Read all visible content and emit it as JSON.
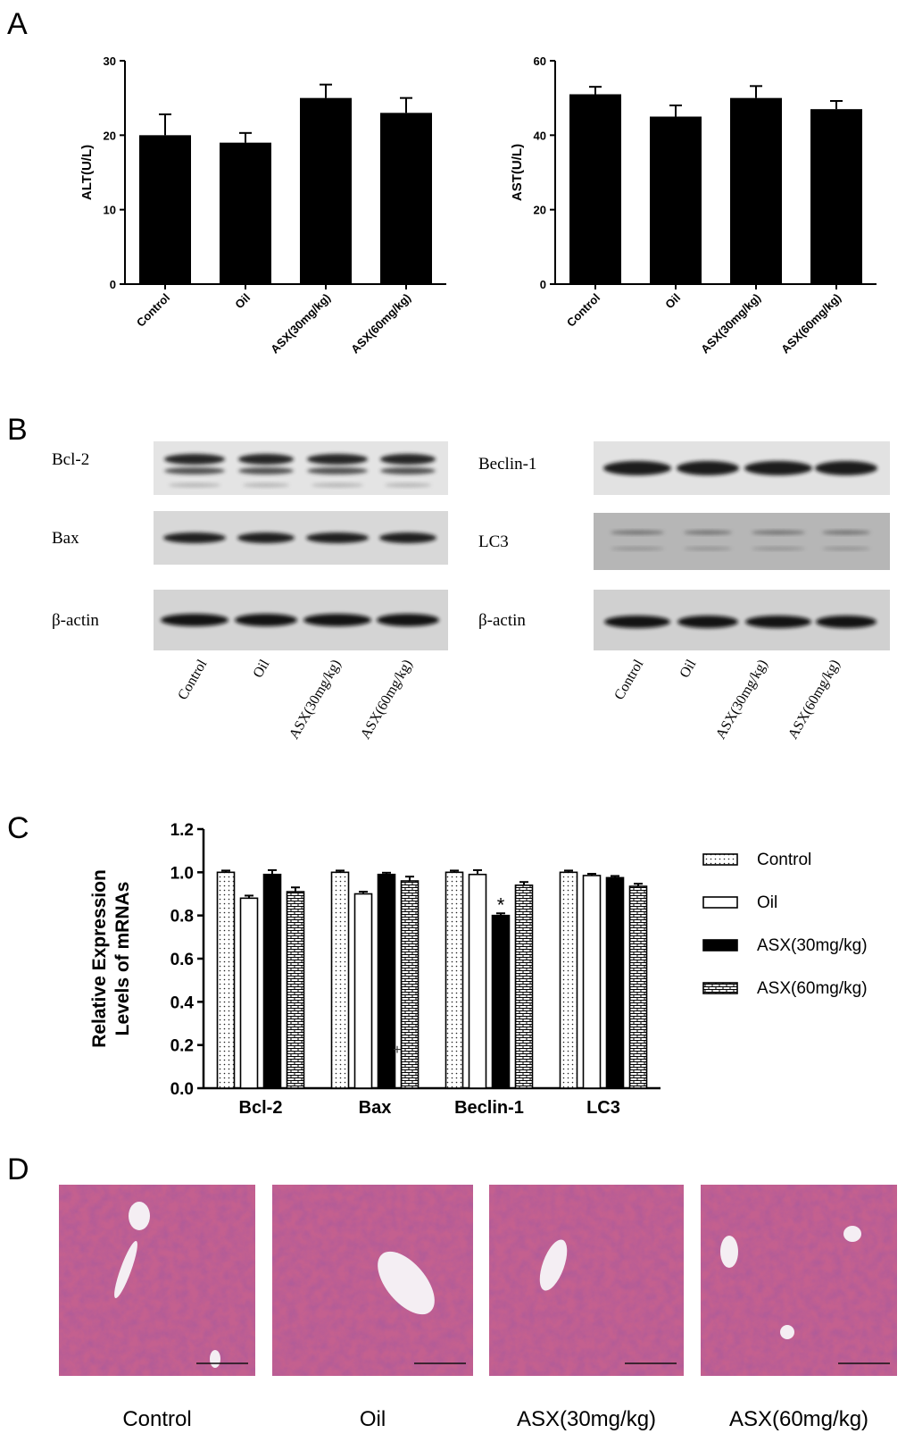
{
  "panel_labels": {
    "a": "A",
    "b": "B",
    "c": "C",
    "d": "D"
  },
  "chart_data": [
    {
      "type": "bar",
      "ylabel": "ALT(U/L)",
      "categories": [
        "Control",
        "Oil",
        "ASX(30mg/kg)",
        "ASX(60mg/kg)"
      ],
      "values": [
        20,
        19,
        25,
        23
      ],
      "errors": [
        2.8,
        1.3,
        1.8,
        2.0
      ],
      "ylim": [
        0,
        30
      ],
      "yticks": [
        0,
        10,
        20,
        30
      ],
      "bar_color": "#000000"
    },
    {
      "type": "bar",
      "ylabel": "AST(U/L)",
      "categories": [
        "Control",
        "Oil",
        "ASX(30mg/kg)",
        "ASX(60mg/kg)"
      ],
      "values": [
        51,
        45,
        50,
        47
      ],
      "errors": [
        2.0,
        3.0,
        3.2,
        2.2
      ],
      "ylim": [
        0,
        60
      ],
      "yticks": [
        0,
        20,
        40,
        60
      ],
      "bar_color": "#000000"
    },
    {
      "type": "bar",
      "ylabel_lines": [
        "Relative Expression",
        "Levels of mRNAs"
      ],
      "categories": [
        "Bcl-2",
        "Bax",
        "Beclin-1",
        "LC3"
      ],
      "ylim": [
        0,
        1.2
      ],
      "yticks": [
        0.0,
        0.2,
        0.4,
        0.6,
        0.8,
        1.0,
        1.2
      ],
      "tick_labels": [
        "0.0",
        "0.2",
        "0.4",
        "0.6",
        "0.8",
        "1.0",
        "1.2"
      ],
      "legend_position": "right",
      "series": [
        {
          "name": "Control",
          "pattern": "dots",
          "values": [
            1.0,
            1.0,
            1.0,
            1.0
          ],
          "errors": [
            0.008,
            0.008,
            0.008,
            0.008
          ]
        },
        {
          "name": "Oil",
          "pattern": "white",
          "values": [
            0.88,
            0.9,
            0.99,
            0.985
          ],
          "errors": [
            0.012,
            0.01,
            0.02,
            0.008
          ]
        },
        {
          "name": "ASX(30mg/kg)",
          "pattern": "black",
          "values": [
            0.99,
            0.99,
            0.8,
            0.975
          ],
          "errors": [
            0.02,
            0.008,
            0.01,
            0.008
          ]
        },
        {
          "name": "ASX(60mg/kg)",
          "pattern": "bricks",
          "values": [
            0.91,
            0.96,
            0.94,
            0.935
          ],
          "errors": [
            0.02,
            0.02,
            0.015,
            0.012
          ]
        }
      ],
      "annotations": [
        {
          "text": "*",
          "category": "Beclin-1",
          "series": "ASX(30mg/kg)"
        },
        {
          "text": "+",
          "category": "Bax",
          "series": "ASX(30mg/kg)"
        }
      ]
    }
  ],
  "western_blot": {
    "left": {
      "rows": [
        "Bcl-2",
        "Bax",
        "β-actin"
      ],
      "lanes": [
        "Control",
        "Oil",
        "ASX(30mg/kg)",
        "ASX(60mg/kg)"
      ]
    },
    "right": {
      "rows": [
        "Beclin-1",
        "LC3",
        "β-actin"
      ],
      "lanes": [
        "Control",
        "Oil",
        "ASX(30mg/kg)",
        "ASX(60mg/kg)"
      ]
    }
  },
  "histology": {
    "captions": [
      "Control",
      "Oil",
      "ASX(30mg/kg)",
      "ASX(60mg/kg)"
    ],
    "tissue_color": "#c4608f"
  }
}
